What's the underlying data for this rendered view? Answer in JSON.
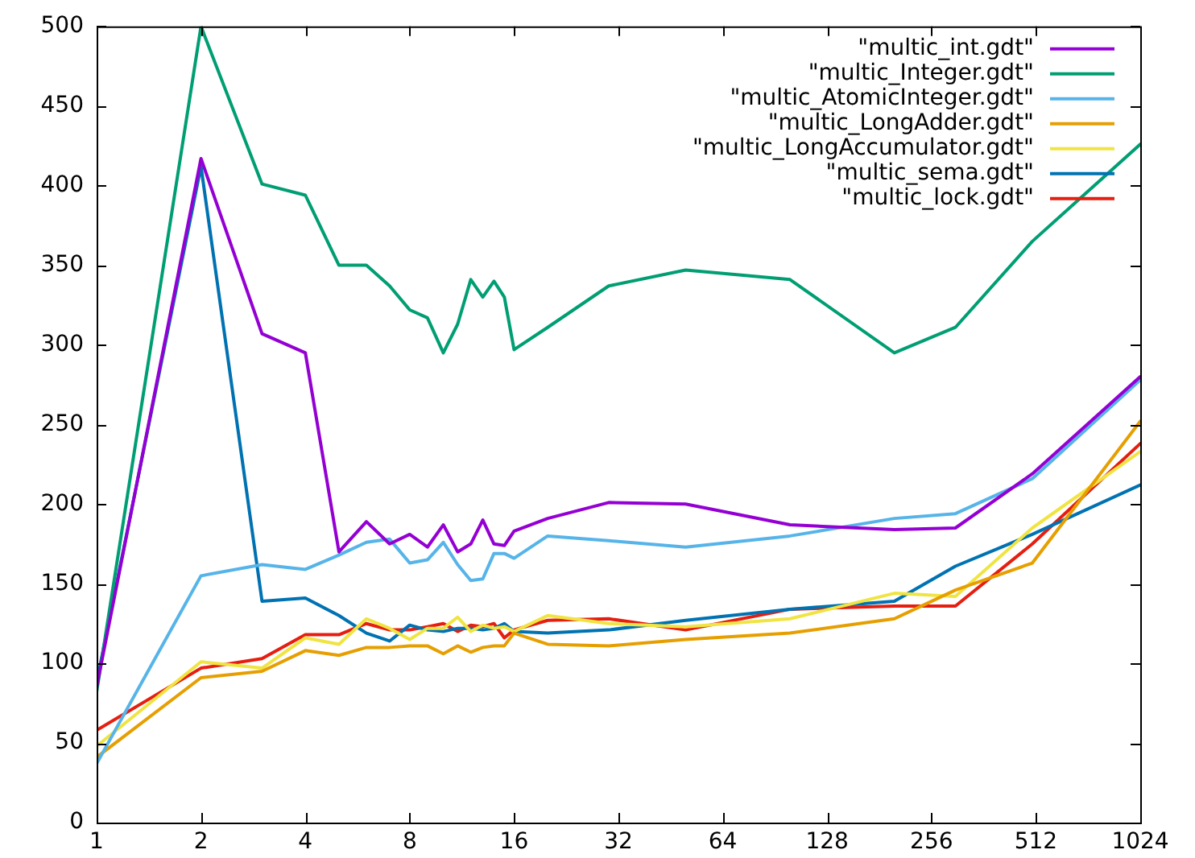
{
  "chart_data": {
    "type": "line",
    "x": [
      1,
      2,
      3,
      4,
      5,
      6,
      7,
      8,
      9,
      10,
      11,
      12,
      13,
      14,
      15,
      16,
      20,
      30,
      50,
      100,
      200,
      300,
      500,
      1024
    ],
    "series": [
      {
        "name": "\"multic_int.gdt\"",
        "color": "#9400d3",
        "values": [
          85,
          417,
          307,
          295,
          170,
          189,
          175,
          181,
          173,
          187,
          170,
          175,
          190,
          175,
          174,
          183,
          191,
          201,
          200,
          187,
          184,
          185,
          219,
          280
        ]
      },
      {
        "name": "\"multic_Integer.gdt\"",
        "color": "#009e73",
        "values": [
          82,
          500,
          401,
          394,
          350,
          350,
          337,
          322,
          317,
          295,
          313,
          341,
          330,
          340,
          330,
          297,
          311,
          337,
          347,
          341,
          295,
          311,
          365,
          426
        ]
      },
      {
        "name": "\"multic_AtomicInteger.gdt\"",
        "color": "#56b4e9",
        "values": [
          37,
          155,
          162,
          159,
          168,
          176,
          178,
          163,
          165,
          176,
          162,
          152,
          153,
          169,
          169,
          166,
          180,
          177,
          173,
          180,
          191,
          194,
          216,
          278
        ]
      },
      {
        "name": "\"multic_LongAdder.gdt\"",
        "color": "#e69f00",
        "values": [
          41,
          91,
          95,
          108,
          105,
          110,
          110,
          111,
          111,
          106,
          111,
          107,
          110,
          111,
          111,
          119,
          112,
          111,
          115,
          119,
          128,
          146,
          163,
          252
        ]
      },
      {
        "name": "\"multic_LongAccumulator.gdt\"",
        "color": "#f0e442",
        "values": [
          48,
          101,
          97,
          116,
          112,
          128,
          122,
          115,
          122,
          122,
          129,
          120,
          124,
          122,
          123,
          120,
          130,
          125,
          123,
          128,
          144,
          142,
          185,
          233
        ]
      },
      {
        "name": "\"multic_sema.gdt\"",
        "color": "#0072b2",
        "values": [
          88,
          412,
          139,
          141,
          130,
          119,
          114,
          124,
          121,
          120,
          122,
          122,
          121,
          122,
          125,
          120,
          119,
          121,
          127,
          134,
          139,
          161,
          181,
          212
        ]
      },
      {
        "name": "\"multic_lock.gdt\"",
        "color": "#e51e10",
        "values": [
          58,
          97,
          103,
          118,
          118,
          125,
          121,
          121,
          123,
          125,
          120,
          124,
          123,
          125,
          116,
          121,
          127,
          128,
          121,
          134,
          136,
          136,
          175,
          238
        ]
      }
    ],
    "log": "x",
    "xlim": [
      1,
      1024
    ],
    "xticks": [
      1,
      2,
      4,
      8,
      16,
      32,
      64,
      128,
      256,
      512,
      1024
    ],
    "ylim": [
      0,
      500
    ],
    "yticks": [
      0,
      50,
      100,
      150,
      200,
      250,
      300,
      350,
      400,
      450,
      500
    ],
    "grid": false,
    "legend": "top right",
    "marker": "none",
    "line_style": "solid"
  }
}
